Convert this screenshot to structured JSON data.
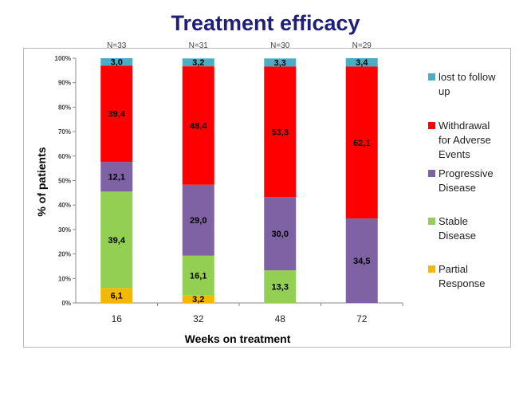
{
  "title": "Treatment efficacy",
  "chart_data": {
    "type": "bar",
    "stacked": true,
    "title": "Treatment efficacy",
    "xlabel": "Weeks on treatment",
    "ylabel": "% of patients",
    "ylim": [
      0,
      100
    ],
    "yticks": [
      "0%",
      "10%",
      "20%",
      "30%",
      "40%",
      "50%",
      "60%",
      "70%",
      "80%",
      "90%",
      "100%"
    ],
    "categories": [
      "16",
      "32",
      "48",
      "72"
    ],
    "n_labels": [
      "N=33",
      "N=31",
      "N=30",
      "N=29"
    ],
    "series": [
      {
        "name": "Partial Response",
        "legend_lines": [
          "Partial",
          "Response"
        ],
        "color": "#f5b800",
        "values": [
          6.1,
          3.2,
          0,
          0
        ],
        "labels": [
          "6,1",
          "3,2",
          "",
          ""
        ]
      },
      {
        "name": "Stable Disease",
        "legend_lines": [
          "Stable",
          "Disease"
        ],
        "color": "#92cf52",
        "values": [
          39.4,
          16.1,
          13.3,
          0
        ],
        "labels": [
          "39,4",
          "16,1",
          "13,3",
          ""
        ]
      },
      {
        "name": "Progressive Disease",
        "legend_lines": [
          "Progressive",
          "Disease"
        ],
        "color": "#7f62a4",
        "values": [
          12.1,
          29.0,
          30.0,
          34.5
        ],
        "labels": [
          "12,1",
          "29,0",
          "30,0",
          "34,5"
        ]
      },
      {
        "name": "Withdrawal for Adverse Events",
        "legend_lines": [
          "Withdrawal",
          "for Adverse",
          "Events"
        ],
        "color": "#ff0000",
        "values": [
          39.4,
          48.4,
          53.3,
          62.1
        ],
        "labels": [
          "39,4",
          "48,4",
          "53,3",
          "62,1"
        ]
      },
      {
        "name": "lost to follow up",
        "legend_lines": [
          "lost to follow",
          "up"
        ],
        "color": "#4bacc6",
        "values": [
          3.0,
          3.2,
          3.3,
          3.4
        ],
        "labels": [
          "3,0",
          "3,2",
          "3,3",
          "3,4"
        ]
      }
    ],
    "legend_order": [
      "lost to follow up",
      "Withdrawal for Adverse Events",
      "Progressive Disease",
      "Stable Disease",
      "Partial Response"
    ],
    "legend_position": "right",
    "grid": false
  }
}
